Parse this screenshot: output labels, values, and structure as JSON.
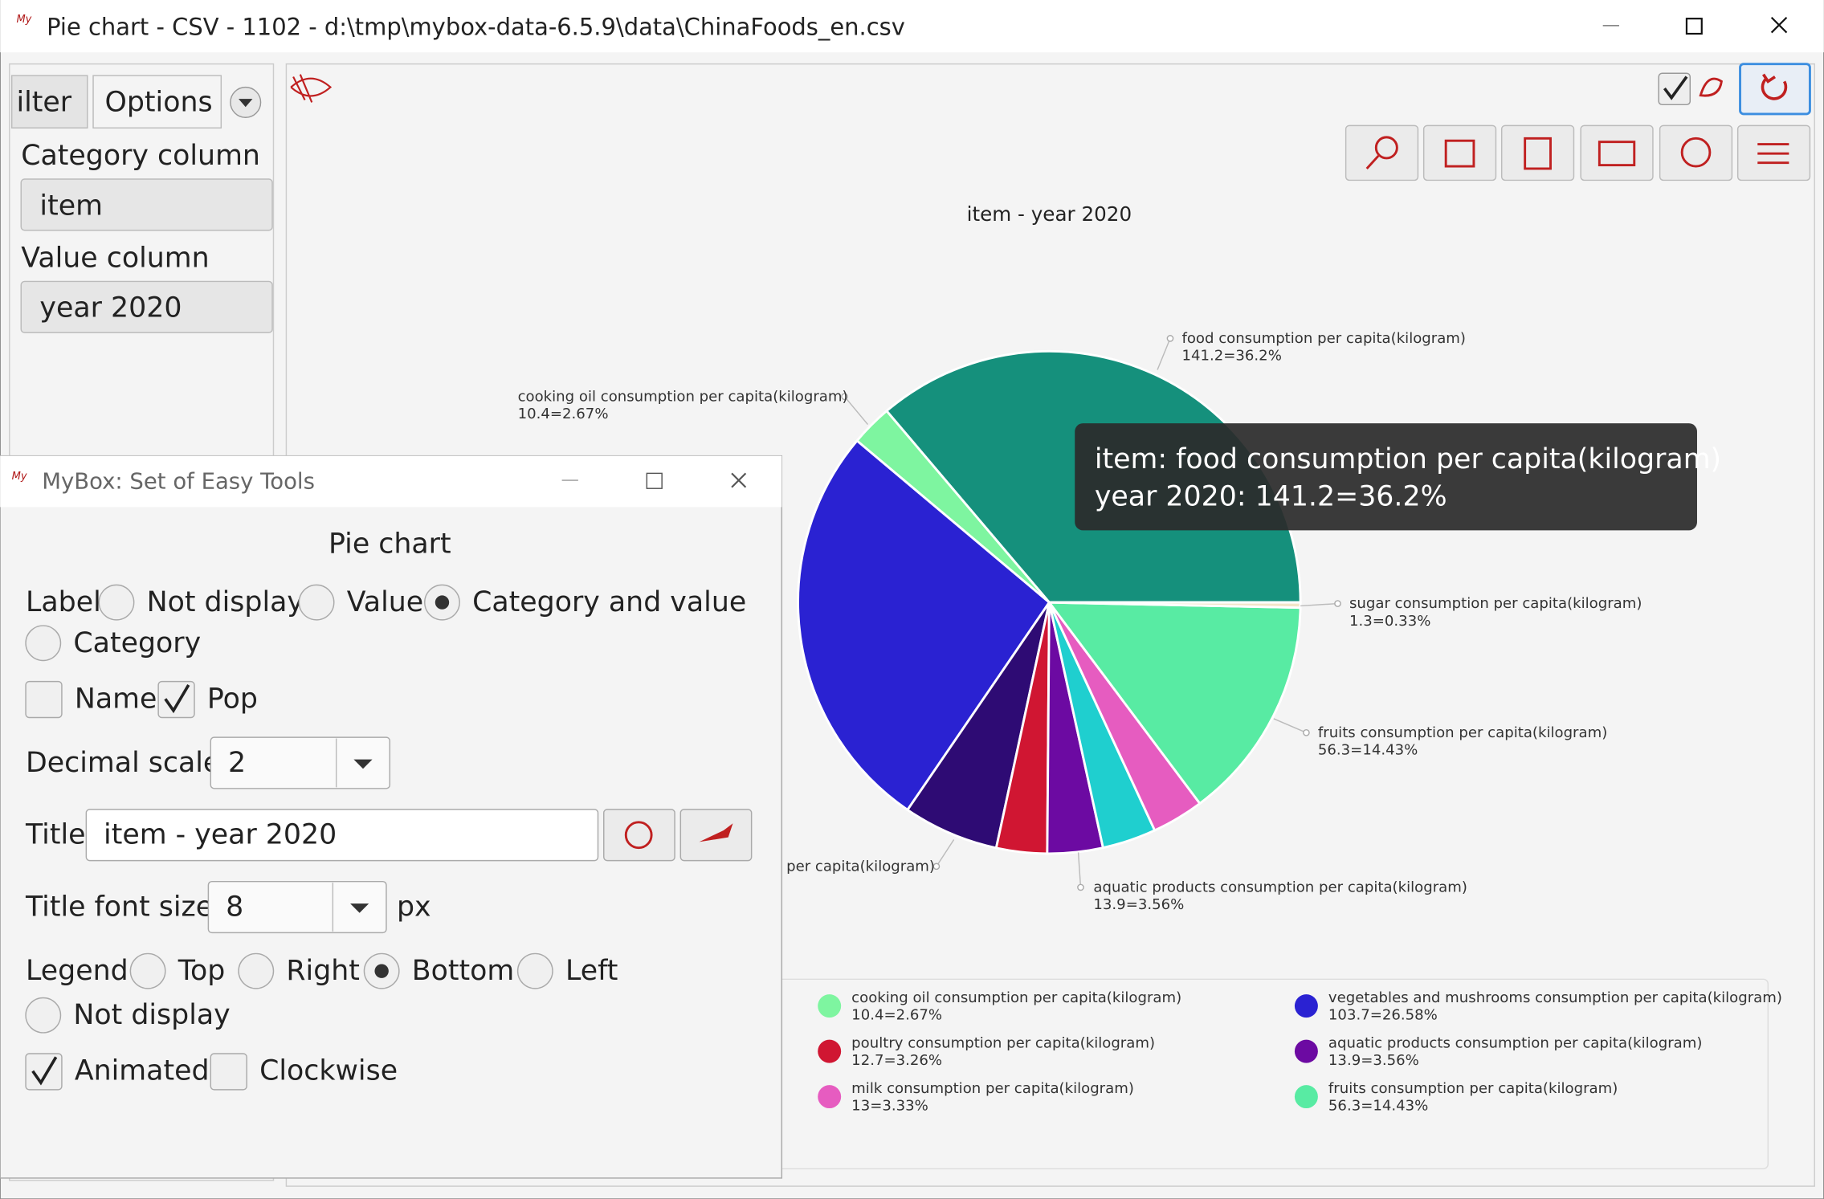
{
  "window": {
    "title": "Pie chart - CSV - 1102 - d:\\tmp\\mybox-data-6.5.9\\data\\ChinaFoods_en.csv"
  },
  "side_panel": {
    "tabs": [
      "ilter",
      "Options"
    ],
    "category_column_label": "Category column",
    "category_column": "item",
    "value_column_label": "Value column",
    "value_column": "year 2020"
  },
  "chart_data": {
    "type": "pie",
    "title": "item - year 2020",
    "clockwise": false,
    "legend": "bottom",
    "categories": [
      "food consumption per capita(kilogram)",
      "cooking oil consumption per capita(kilogram)",
      "vegetables and mushrooms consumption per capita(kilogram)",
      null,
      "poultry consumption per capita(kilogram)",
      "aquatic products consumption per capita(kilogram)",
      null,
      "milk consumption per capita(kilogram)",
      "fruits consumption per capita(kilogram)",
      "sugar consumption per capita(kilogram)"
    ],
    "values": [
      141.2,
      10.4,
      103.7,
      24,
      12.7,
      13.9,
      13.5,
      13,
      56.3,
      1.3
    ],
    "value_labels": [
      "141.2=36.2%",
      "10.4=2.67%",
      "103.7=26.58%",
      null,
      "12.7=3.26%",
      "13.9=3.56%",
      null,
      "13=3.33%",
      "56.3=14.43%",
      "1.3=0.33%"
    ],
    "colors": [
      "#15907c",
      "#7ef5a0",
      "#2a22d2",
      "#2e0b74",
      "#d01632",
      "#6c0aa2",
      "#1fcfcf",
      "#e65cc0",
      "#58eba3",
      "#f3e5c8"
    ],
    "clipped_label": "per capita(kilogram)",
    "tooltip": [
      "item: food consumption per capita(kilogram)",
      "year 2020: 141.2=36.2%"
    ]
  },
  "dialog": {
    "title": "MyBox: Set of Easy Tools",
    "heading": "Pie chart",
    "label_caption": "Label",
    "label_options": [
      "Not display",
      "Value",
      "Category and value",
      "Category"
    ],
    "label_selected": 2,
    "checks": [
      {
        "text": "Name",
        "checked": false
      },
      {
        "text": "Pop",
        "checked": true
      }
    ],
    "decimal_scale_label": "Decimal scale",
    "decimal_scale": 2,
    "title_label": "Title",
    "title_value": "item - year 2020",
    "title_font_size_label": "Title font size",
    "title_font_size": 8,
    "unit": "px",
    "legend_caption": "Legend",
    "legend_options": [
      "Top",
      "Right",
      "Bottom",
      "Left",
      "Not display"
    ],
    "legend_selected": 2,
    "options": [
      {
        "text": "Animated",
        "checked": true
      },
      {
        "text": "Clockwise",
        "checked": false
      }
    ]
  }
}
